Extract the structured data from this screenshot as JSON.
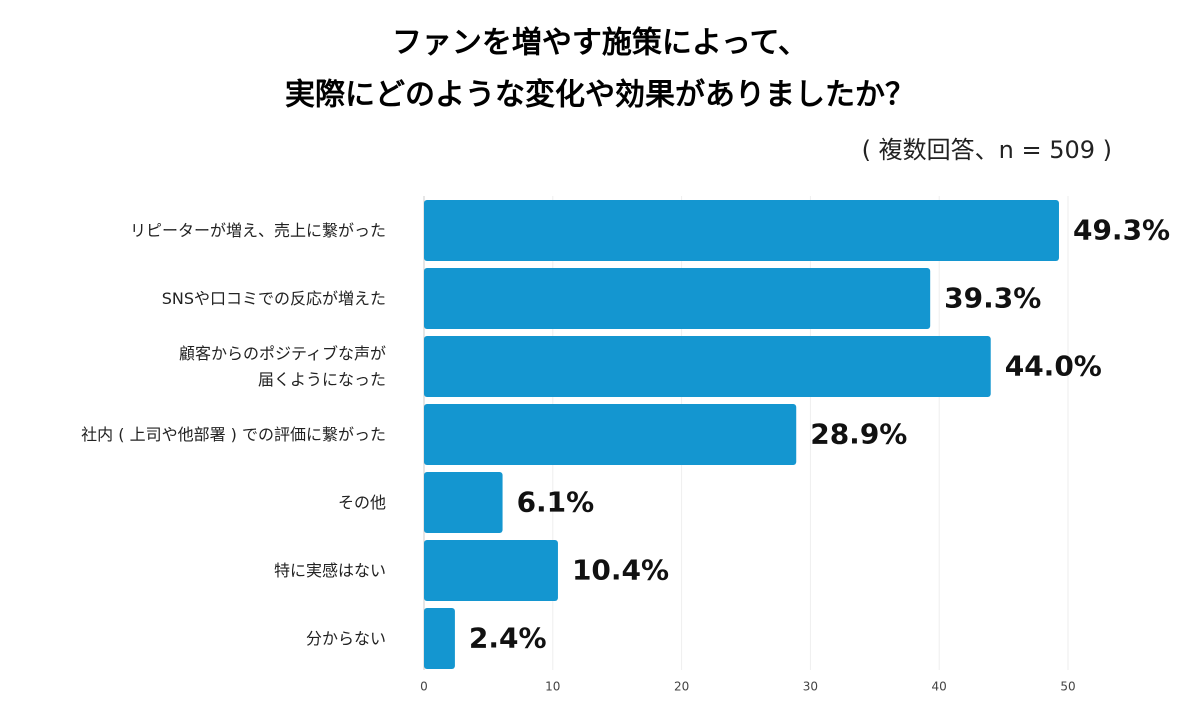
{
  "chart_data": {
    "type": "hbar",
    "title": [
      "ファンを増やす施策によって、",
      "実際にどのような変化や効果がありましたか？"
    ],
    "subtitle": "( 複数回答、n = 509 )",
    "categories": [
      "リピーターが増え、売上に繋がった",
      "SNSや口コミでの反応が増えた",
      "顧客からのポジティブな声が\n届くようになった",
      "社内 ( 上司や他部署 ) での評価に繋がった",
      "その他",
      "特に実感はない",
      "分からない"
    ],
    "values": [
      49.3,
      39.3,
      44.0,
      28.9,
      6.1,
      10.4,
      2.4
    ],
    "value_labels": [
      "49.3%",
      "39.3%",
      "44.0%",
      "28.9%",
      "6.1%",
      "10.4%",
      "2.4%"
    ],
    "color": "#1496d0",
    "xlim": [
      0,
      50
    ],
    "xticks": [
      0,
      10,
      20,
      30,
      40,
      50
    ],
    "grid": true
  }
}
